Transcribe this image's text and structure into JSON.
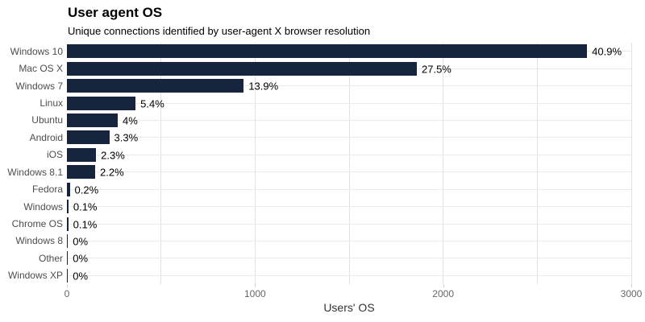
{
  "header": {
    "title": "User agent OS",
    "subtitle": "Unique connections identified by user-agent X browser resolution"
  },
  "chart_data": {
    "type": "bar",
    "orientation": "horizontal",
    "title": "User agent OS",
    "subtitle": "Unique connections identified by user-agent X browser resolution",
    "categories": [
      "Windows 10",
      "Mac OS X",
      "Windows 7",
      "Linux",
      "Ubuntu",
      "Android",
      "iOS",
      "Windows 8.1",
      "Fedora",
      "Windows",
      "Chrome OS",
      "Windows 8",
      "Other",
      "Windows XP"
    ],
    "values": [
      2765,
      1860,
      940,
      365,
      270,
      225,
      155,
      150,
      15,
      8,
      7,
      2,
      2,
      2
    ],
    "value_labels": [
      "40.9%",
      "27.5%",
      "13.9%",
      "5.4%",
      "4%",
      "3.3%",
      "2.3%",
      "2.2%",
      "0.2%",
      "0.1%",
      "0.1%",
      "0%",
      "0%",
      "0%"
    ],
    "xlabel": "Users' OS",
    "ylabel": "",
    "xlim": [
      0,
      3000
    ],
    "x_ticks": [
      0,
      1000,
      2000,
      3000
    ],
    "gridline_values": [
      500,
      1000,
      1500,
      2000,
      2500,
      3000
    ],
    "grid": "on",
    "legend": "none",
    "colors": {
      "bar": "#16243d",
      "value_label": "#000000",
      "category_label": "#4d4d4d",
      "tick_label": "#666666",
      "grid": "#e2e2e2",
      "background": "#ffffff"
    }
  }
}
